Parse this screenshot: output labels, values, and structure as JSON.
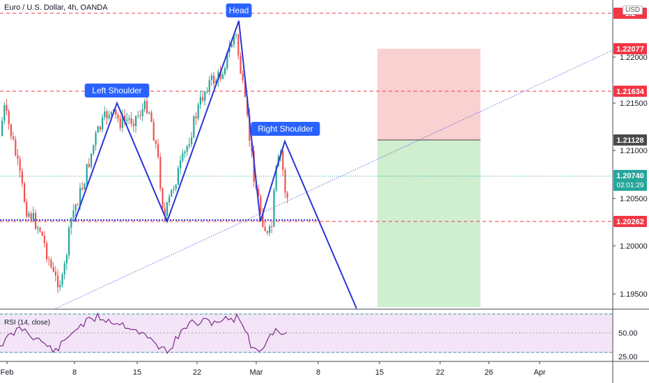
{
  "window": {
    "title": "Euro / U.S. Dollar, 4h, OANDA",
    "currency_button": "USD",
    "rsi_label": "RSI (14, close)"
  },
  "price_axis": {
    "ticks": [
      "1.22000",
      "1.21500",
      "1.21000",
      "1.20500",
      "1.20000",
      "1.19500"
    ],
    "tags": [
      {
        "label": "1.2",
        "color": "#f23645",
        "text_color": "#ffffff"
      },
      {
        "label": "1.22077",
        "color": "#f23645",
        "text_color": "#ffffff"
      },
      {
        "label": "1.21634",
        "color": "#f23645",
        "text_color": "#ffffff"
      },
      {
        "label": "1.21128",
        "color": "#4a4a4a",
        "text_color": "#ffffff"
      },
      {
        "label": "1.20740",
        "sub": "02:01:29",
        "color": "#26a69a",
        "text_color": "#ffffff"
      },
      {
        "label": "1.20262",
        "color": "#f23645",
        "text_color": "#ffffff"
      }
    ]
  },
  "rsi_axis": {
    "ticks": [
      "50.00",
      "25.00"
    ]
  },
  "time_axis": {
    "ticks": [
      "Feb",
      "8",
      "15",
      "22",
      "Mar",
      "8",
      "15",
      "22",
      "26",
      "Apr"
    ]
  },
  "annotations": {
    "head": "Head",
    "left_shoulder": "Left Shoulder",
    "right_shoulder": "Right Shoulder"
  },
  "chart_data": {
    "type": "candlestick",
    "symbol": "Euro / U.S. Dollar, 4h, OANDA",
    "pattern": "Head and Shoulders",
    "levels": [
      1.22077,
      1.21634,
      1.21128,
      1.2074,
      1.20262
    ],
    "ylim": [
      1.193,
      1.2245
    ],
    "rsi_levels": [
      50,
      25
    ],
    "colors": {
      "up": "#26a69a",
      "down": "#ef5350",
      "pattern": "#2c34d6",
      "stop_zone": "#f7c6c6",
      "target_zone": "#cbeccb",
      "rsi_bg": "#f3e5f7",
      "rsi_line": "#7b2a8a"
    }
  }
}
